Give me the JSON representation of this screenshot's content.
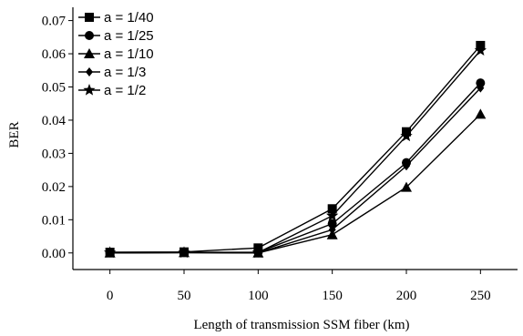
{
  "chart_data": {
    "type": "line",
    "title": "",
    "xlabel": "Length of transmission SSM fiber (km)",
    "ylabel": "BER",
    "x": [
      0,
      50,
      100,
      150,
      200,
      250
    ],
    "xlim": [
      -25,
      275
    ],
    "ylim": [
      -0.005,
      0.074
    ],
    "xticks": [
      "0",
      "50",
      "100",
      "150",
      "200",
      "250"
    ],
    "yticks": [
      "0.00",
      "0.01",
      "0.02",
      "0.03",
      "0.04",
      "0.05",
      "0.06",
      "0.07"
    ],
    "ytick_values": [
      0,
      0.01,
      0.02,
      0.03,
      0.04,
      0.05,
      0.06,
      0.07
    ],
    "grid": false,
    "legend_position": "top-left",
    "series": [
      {
        "name": "a = 1/40",
        "marker": "square",
        "values": [
          0.0002,
          0.0003,
          0.0015,
          0.0133,
          0.0365,
          0.0625
        ]
      },
      {
        "name": "a = 1/25",
        "marker": "circle",
        "values": [
          0.0001,
          0.0002,
          0.0002,
          0.0088,
          0.0272,
          0.0512
        ]
      },
      {
        "name": "a = 1/10",
        "marker": "triangle",
        "values": [
          0.0,
          0.0001,
          0.0,
          0.0055,
          0.0198,
          0.0418
        ]
      },
      {
        "name": "a = 1/3",
        "marker": "diamond",
        "values": [
          0.0,
          0.0001,
          0.0,
          0.007,
          0.0262,
          0.0497
        ]
      },
      {
        "name": "a = 1/2",
        "marker": "star",
        "values": [
          0.0001,
          0.0001,
          0.0001,
          0.0112,
          0.0352,
          0.061
        ]
      }
    ]
  }
}
